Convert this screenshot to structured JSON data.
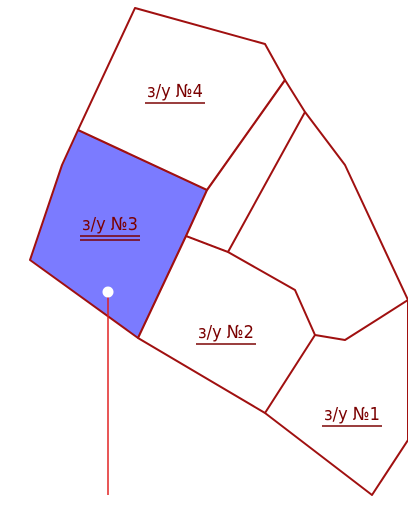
{
  "plots": [
    {
      "label": "з/у №4"
    },
    {
      "label": "з/у №3"
    },
    {
      "label": "з/у №2"
    },
    {
      "label": "з/у №1"
    }
  ]
}
